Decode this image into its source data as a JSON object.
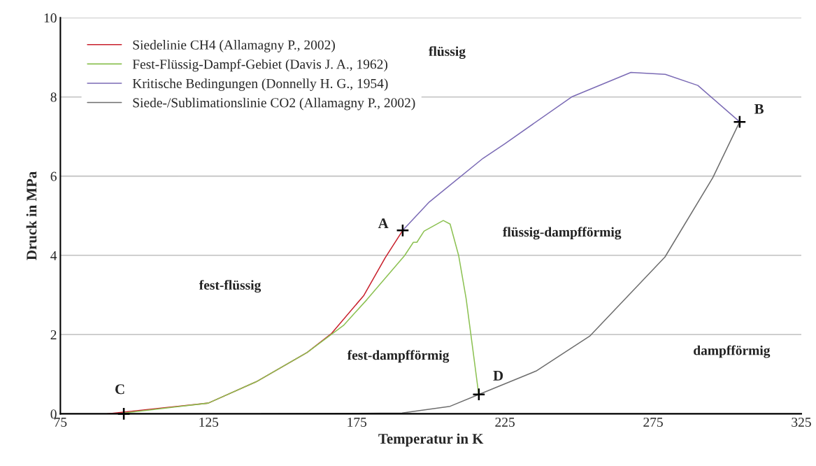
{
  "chart_data": {
    "type": "line",
    "xlabel": "Temperatur in K",
    "ylabel": "Druck in MPa",
    "xlim": [
      75,
      325
    ],
    "xticks": [
      75,
      125,
      175,
      225,
      275,
      325
    ],
    "ylim": [
      0,
      10
    ],
    "yticks": [
      0,
      2,
      4,
      6,
      8,
      10
    ],
    "grid": "y",
    "legend": "top left",
    "series": [
      {
        "name": "Siedelinie CH4 (Allamagny P., 2002)",
        "color": "#c8202c",
        "x": [
          90.8,
          124.9,
          141.1,
          158.3,
          166.5,
          177.4,
          184.6,
          190.5
        ],
        "values": [
          0.0,
          0.27,
          0.81,
          1.55,
          2.03,
          2.99,
          3.94,
          4.63
        ]
      },
      {
        "name": "Fest-Flüssig-Dampf-Gebiet (Davis J. A., 1962)",
        "color": "#8cc152",
        "x": [
          96.6,
          124.9,
          141.1,
          158.3,
          170.5,
          178.4,
          191.1,
          194.1,
          195.3,
          197.7,
          204.2,
          206.5,
          209.4,
          211.9,
          214.3,
          216.2
        ],
        "values": [
          0.02,
          0.27,
          0.81,
          1.55,
          2.23,
          2.88,
          3.99,
          4.33,
          4.33,
          4.61,
          4.88,
          4.79,
          3.99,
          2.91,
          1.55,
          0.46
        ]
      },
      {
        "name": "Kritische Bedingungen (Donnelly H. G., 1954)",
        "color": "#7b6bb5",
        "x": [
          190.5,
          199.5,
          217.6,
          225,
          247.5,
          267.5,
          279.1,
          290.1,
          304.2
        ],
        "values": [
          4.63,
          5.35,
          6.45,
          6.82,
          8.0,
          8.62,
          8.57,
          8.29,
          7.37
        ]
      },
      {
        "name": "Siede-/Sublimationslinie CO2 (Allamagny P., 2002)",
        "color": "#6e6e6e",
        "x": [
          142.8,
          175,
          190.3,
          206.5,
          216.2,
          235.5,
          253.6,
          279,
          295.2,
          304.2
        ],
        "values": [
          0.0,
          0.01,
          0.02,
          0.19,
          0.49,
          1.08,
          1.96,
          3.96,
          5.97,
          7.37
        ]
      },
      {
        "type": "scatter",
        "marker": "cross",
        "color": "#000000",
        "x": [
          190.5,
          304.2,
          96.4,
          216.2
        ],
        "values": [
          4.63,
          7.37,
          0.0,
          0.49
        ]
      }
    ],
    "annotations": [
      {
        "text": "A",
        "x": 190.5,
        "y": 4.63
      },
      {
        "text": "B",
        "x": 304.2,
        "y": 7.37
      },
      {
        "text": "C",
        "x": 96.4,
        "y": 0.0
      },
      {
        "text": "D",
        "x": 216.2,
        "y": 0.49
      },
      "flüssig",
      "flüssig-dampfförmig",
      "fest-flüssig",
      "fest-dampfförmig",
      "dampfförmig"
    ]
  }
}
